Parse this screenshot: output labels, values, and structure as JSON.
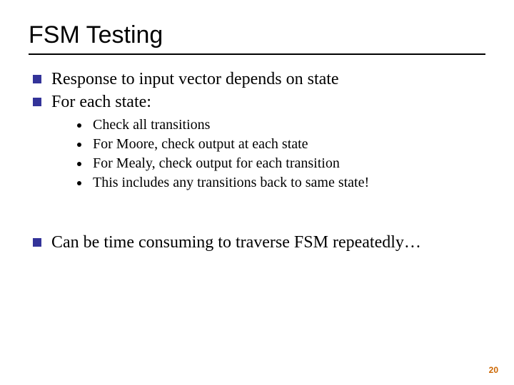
{
  "title": "FSM Testing",
  "bullets_top": {
    "b1": "Response to input vector depends on state",
    "b2": "For each state:"
  },
  "sub_bullets": {
    "s1": "Check all transitions",
    "s2": "For Moore, check output at each state",
    "s3": "For Mealy, check output for each transition",
    "s4": "This includes any transitions back to same state!"
  },
  "bullets_bottom": {
    "b3": "Can be time consuming to traverse FSM repeatedly…"
  },
  "page_number": "20",
  "style": {
    "title_font": "Arial",
    "title_size_pt": 34,
    "body_font": "Times New Roman",
    "body_size_pt": 24,
    "sub_size_pt": 20,
    "square_bullet_color": "#333399",
    "dot_bullet_color": "#000000",
    "rule_color": "#000000",
    "pagenum_color": "#cc6600",
    "background_color": "#ffffff"
  }
}
